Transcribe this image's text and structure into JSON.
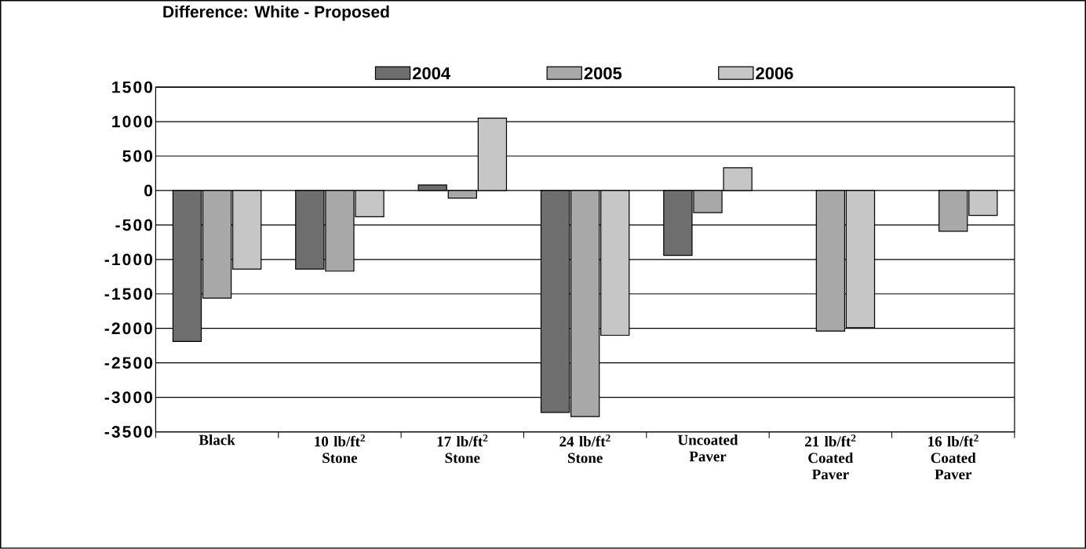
{
  "chart_data": {
    "type": "bar",
    "title": "Difference: White - Proposed",
    "categories": [
      "Black",
      "10 lb/ft$^{2}$ Stone",
      "17 lb/ft$^{2}$ Stone",
      "24 lb/ft$^{2}$ Stone",
      "Uncoated Paver",
      "21 lb/ft$^{2}$ Coated Paver",
      "16 lb/ft$^{2}$ Coated Paver"
    ],
    "series": [
      {
        "name": "2004",
        "color": "#6e6e6e",
        "values": [
          -2190,
          -1140,
          80,
          -3220,
          -940,
          null,
          null
        ]
      },
      {
        "name": "2005",
        "color": "#a8a8a8",
        "values": [
          -1560,
          -1170,
          -110,
          -3280,
          -320,
          -2040,
          -590
        ]
      },
      {
        "name": "2006",
        "color": "#c6c6c6",
        "values": [
          -1140,
          -380,
          1050,
          -2100,
          330,
          -1990,
          -360
        ]
      }
    ],
    "ylim": [
      -3500,
      1500
    ],
    "yticks": [
      -3500,
      -3000,
      -2500,
      -2000,
      -1500,
      -1000,
      -500,
      0,
      500,
      1000,
      1500
    ],
    "grid": "y",
    "legend": "top"
  }
}
